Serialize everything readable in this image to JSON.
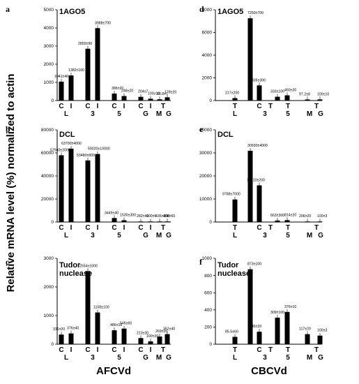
{
  "y_axis_label": "Relative mRNA level (%) normalized to actin",
  "x_labels": [
    "AFCVd",
    "CBCVd"
  ],
  "chart_data": [
    {
      "type": "bar",
      "panel": "a",
      "title": "1AGO5",
      "categories": [
        "C",
        "I",
        "C",
        "I",
        "C",
        "I",
        "C",
        "I",
        "T",
        "M",
        "G"
      ],
      "group_labels": [
        "L",
        "3",
        "5",
        "G",
        "M G"
      ],
      "values": [
        1041,
        1382,
        2855,
        3988,
        386,
        248,
        204,
        100,
        0,
        68.8,
        178
      ],
      "data_labels": [
        "1041±40",
        "1382±100",
        "2855±90",
        "3988±700",
        "386±20",
        "248±20",
        "204±7",
        "100±10",
        "",
        "68.8±7",
        "178±20"
      ],
      "ylim": [
        0,
        5000
      ],
      "yticks": [
        "0",
        "1000",
        "2000",
        "3000",
        "4000",
        "5000"
      ]
    },
    {
      "type": "bar",
      "panel": "b",
      "title": "DCL",
      "categories": [
        "C",
        "I",
        "C",
        "I",
        "C",
        "I",
        "C",
        "I",
        "T",
        "M",
        "G"
      ],
      "group_labels": [
        "L",
        "3",
        "5",
        "G",
        "M G"
      ],
      "values": [
        57940,
        63700,
        53480,
        59020,
        3449,
        1530,
        282,
        100,
        0,
        436,
        408
      ],
      "data_labels": [
        "57940±2000",
        "63700±4000",
        "53480±800",
        "59020±10000",
        "3449±40",
        "1530±300",
        "282±40",
        "100±6",
        "",
        "436±300",
        "408±60"
      ],
      "ylim": [
        0,
        80000
      ],
      "yticks": [
        "0",
        "20000",
        "40000",
        "60000",
        "80000"
      ]
    },
    {
      "type": "bar",
      "panel": "c",
      "title": "Tudor nuclease",
      "categories": [
        "C",
        "I",
        "C",
        "I",
        "C",
        "I",
        "C",
        "I",
        "T",
        "M",
        "G"
      ],
      "group_labels": [
        "L",
        "3",
        "5",
        "G",
        "M G"
      ],
      "values": [
        336,
        376,
        2554,
        1108,
        486,
        545,
        213,
        100,
        0,
        269,
        352
      ],
      "data_labels": [
        "336±20",
        "376±40",
        "2554±1000",
        "1108±100",
        "486±10",
        "545±60",
        "213±30",
        "100±20",
        "",
        "269±20",
        "352±40"
      ],
      "ylim": [
        0,
        3000
      ],
      "yticks": [
        "0",
        "1000",
        "2000",
        "3000"
      ]
    },
    {
      "type": "bar",
      "panel": "d",
      "title": "1AGO5",
      "categories": [
        "T",
        "C",
        "T",
        "T",
        "T",
        "M",
        "G"
      ],
      "group_labels": [
        "L",
        "3",
        "5",
        "M G"
      ],
      "values": [
        217,
        1335,
        7250,
        333,
        460,
        97.2,
        100
      ],
      "data_labels": [
        "217±200",
        "1335±300",
        "7250±700",
        "333±100",
        "460±30",
        "97.2±8",
        "100±10"
      ],
      "ylim": [
        0,
        8000
      ],
      "yticks": [
        "0",
        "2000",
        "4000",
        "6000",
        "8000"
      ]
    },
    {
      "type": "bar",
      "panel": "e",
      "title": "DCL",
      "categories": [
        "T",
        "C",
        "T",
        "T",
        "T",
        "M",
        "G"
      ],
      "group_labels": [
        "L",
        "3",
        "5",
        "M G"
      ],
      "values": [
        9788,
        15910,
        30930,
        663,
        814,
        206,
        100
      ],
      "data_labels": [
        "9788±7000",
        "15910±200",
        "30930±4000",
        "663±300",
        "814±20",
        "206±20",
        "100±3"
      ],
      "ylim": [
        0,
        40000
      ],
      "yticks": [
        "0",
        "10000",
        "20000",
        "30000",
        "40000"
      ]
    },
    {
      "type": "bar",
      "panel": "f",
      "title": "Tudor nuclease",
      "categories": [
        "T",
        "C",
        "T",
        "T",
        "T",
        "M",
        "G"
      ],
      "group_labels": [
        "L",
        "3",
        "5",
        "M G"
      ],
      "values": [
        85.5,
        145,
        873,
        309,
        376,
        117,
        100
      ],
      "data_labels": [
        "85.5±60",
        "145±20",
        "873±100",
        "309±100",
        "376±10",
        "117±20",
        "100±3"
      ],
      "ylim": [
        0,
        1000
      ],
      "yticks": [
        "0",
        "200",
        "400",
        "600",
        "800",
        "1000"
      ]
    }
  ]
}
